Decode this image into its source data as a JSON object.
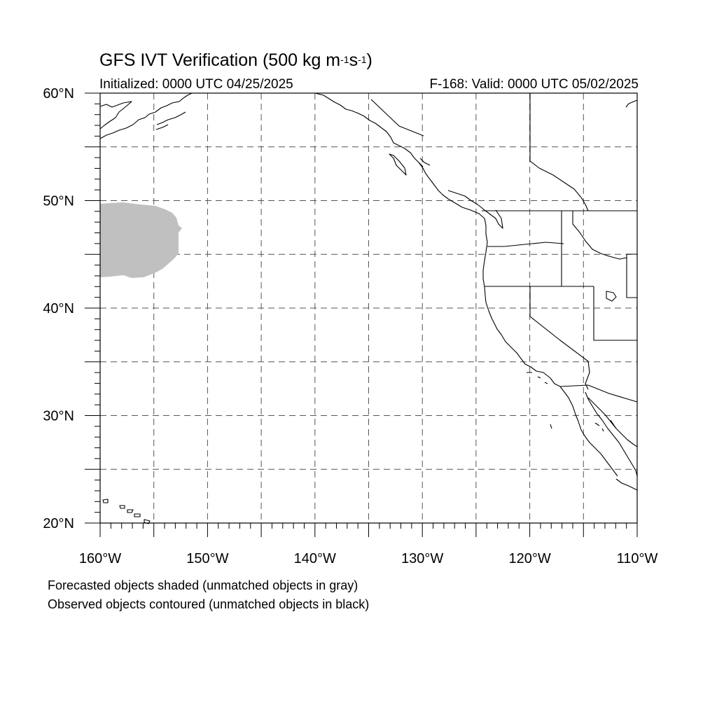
{
  "header": {
    "title_main": "GFS IVT Verification (500 kg m",
    "title_sup1": "-1",
    "title_s": "s",
    "title_sup2": "-1",
    "title_close": ")",
    "initialized": "Initialized: 0000 UTC 04/25/2025",
    "valid": "F-168: Valid: 0000 UTC 05/02/2025"
  },
  "map": {
    "lon_range": [
      -160,
      -110
    ],
    "lat_range": [
      20,
      60
    ],
    "grid": "dashed every 5 degrees",
    "lat_labels": [
      "20°N",
      "30°N",
      "40°N",
      "50°N",
      "60°N"
    ],
    "lon_labels": [
      "160°W",
      "150°W",
      "140°W",
      "130°W",
      "120°W",
      "110°W"
    ],
    "forecast_object": {
      "status": "unmatched",
      "fill_color": "#c0c0c0",
      "lon_extent": [
        -160,
        -152.5
      ],
      "lat_extent": [
        43,
        49.8
      ]
    },
    "observed_objects": []
  },
  "footer": {
    "line1": "Forecasted objects shaded (unmatched objects in gray)",
    "line2": "Observed objects contoured (unmatched objects in black)"
  }
}
